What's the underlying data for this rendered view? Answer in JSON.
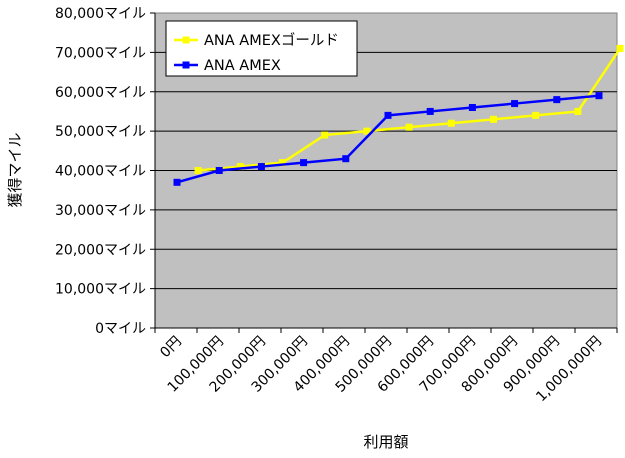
{
  "chart_data": {
    "type": "line",
    "xlabel": "利用額",
    "ylabel": "獲得マイル",
    "categories": [
      "0円",
      "100,000円",
      "200,000円",
      "300,000円",
      "400,000円",
      "500,000円",
      "600,000円",
      "700,000円",
      "800,000円",
      "900,000円",
      "1,000,000円"
    ],
    "y_ticks": [
      "0マイル",
      "10,000マイル",
      "20,000マイル",
      "30,000マイル",
      "40,000マイル",
      "50,000マイル",
      "60,000マイル",
      "70,000マイル",
      "80,000マイル"
    ],
    "ylim": [
      0,
      80000
    ],
    "grid": true,
    "legend_position": "top-left",
    "plot_background": "#c0c0c0",
    "series": [
      {
        "name": "ANA AMEXゴールド",
        "color": "#ffff00",
        "marker": "square",
        "x": [
          50000,
          150000,
          250000,
          350000,
          450000,
          550000,
          650000,
          750000,
          850000,
          950000,
          1050000
        ],
        "values": [
          40000,
          41000,
          42000,
          49000,
          50000,
          51000,
          52000,
          53000,
          54000,
          55000,
          71000
        ]
      },
      {
        "name": "ANA AMEX",
        "color": "#0000ff",
        "marker": "square",
        "x": [
          0,
          100000,
          200000,
          300000,
          400000,
          500000,
          600000,
          700000,
          800000,
          900000,
          1000000
        ],
        "values": [
          37000,
          40000,
          41000,
          42000,
          43000,
          54000,
          55000,
          56000,
          57000,
          58000,
          59000
        ]
      }
    ]
  }
}
